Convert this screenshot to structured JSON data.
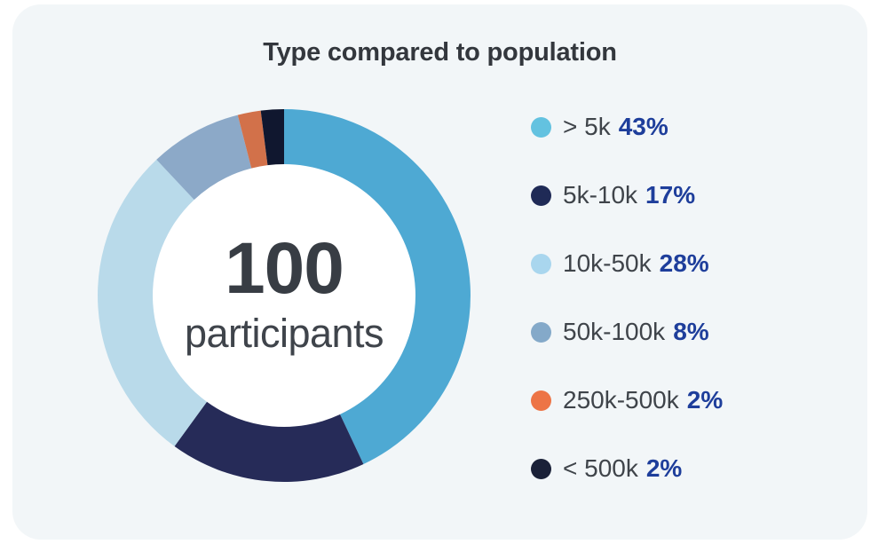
{
  "title": "Type compared to population",
  "donut_center": {
    "value": "100",
    "label": "participants"
  },
  "colors": {
    "page_background": "#FFFFFF",
    "card_background": "#F2F6F8",
    "title_text": "#33373D",
    "center_number_text": "#383D44",
    "center_label_text": "#3F444B",
    "legend_label_text": "#3F444A",
    "legend_percent_text": "#1E3E9B",
    "donut_hole": "#FFFFFF"
  },
  "chart_data": {
    "type": "pie",
    "subtype": "donut",
    "title": "Type compared to population",
    "total": 100,
    "center_text": "100 participants",
    "legend_position": "right",
    "start_angle_deg": -90,
    "direction": "clockwise",
    "segments": [
      {
        "label": "> 5k",
        "value": 43,
        "percent_label": "43%",
        "segment_color": "#4EA9D3",
        "dot_color": "#63C2E0"
      },
      {
        "label": "5k-10k",
        "value": 17,
        "percent_label": "17%",
        "segment_color": "#262B58",
        "dot_color": "#1F2A56"
      },
      {
        "label": "10k-50k",
        "value": 28,
        "percent_label": "28%",
        "segment_color": "#B9DAEA",
        "dot_color": "#A9D6EE"
      },
      {
        "label": "50k-100k",
        "value": 8,
        "percent_label": "8%",
        "segment_color": "#8CA9C8",
        "dot_color": "#84A9C9"
      },
      {
        "label": "250k-500k",
        "value": 2,
        "percent_label": "2%",
        "segment_color": "#D2714A",
        "dot_color": "#ED7446"
      },
      {
        "label": "< 500k",
        "value": 2,
        "percent_label": "2%",
        "segment_color": "#10172F",
        "dot_color": "#1A2138"
      }
    ]
  }
}
